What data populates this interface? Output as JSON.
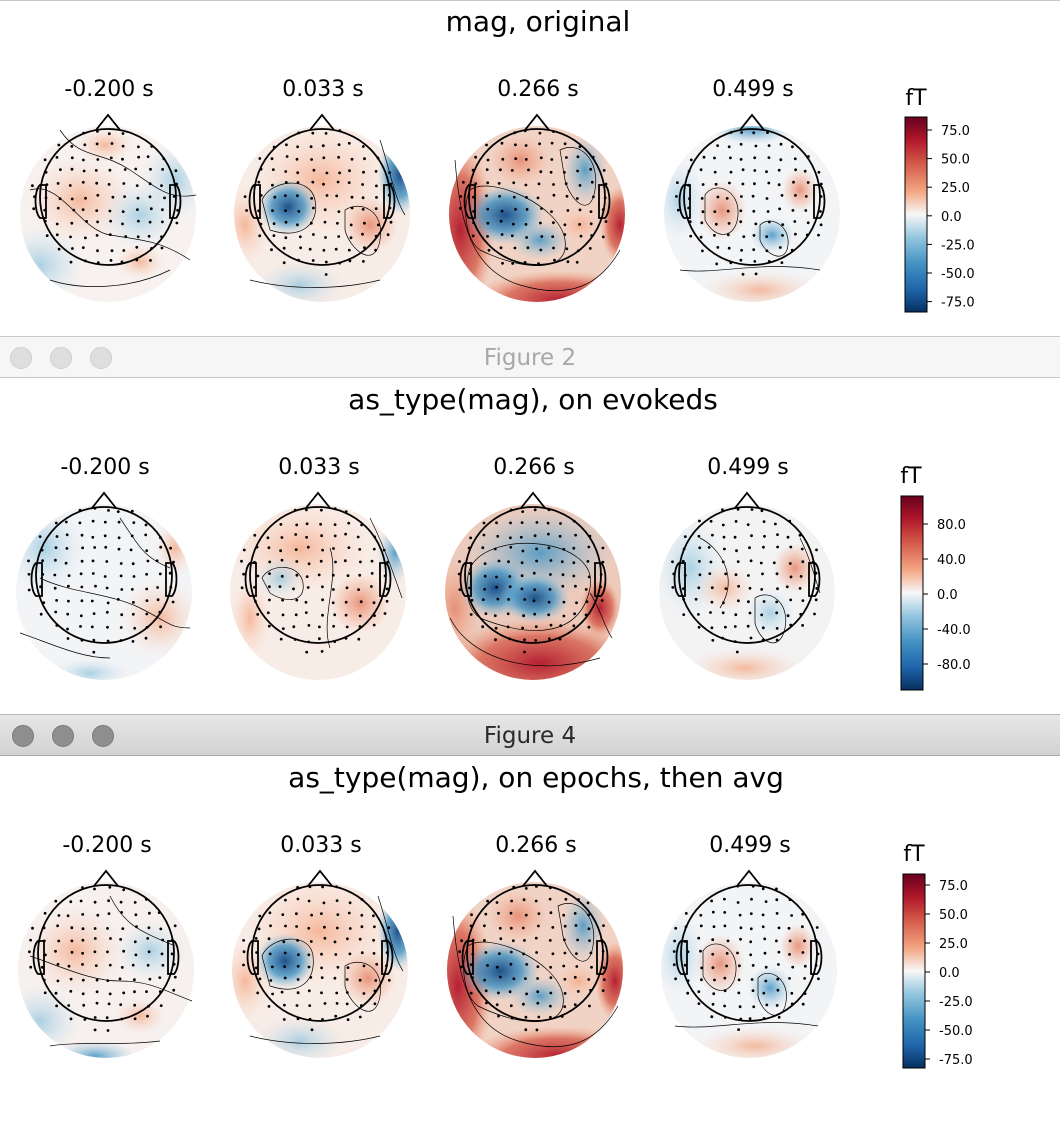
{
  "windows": [
    {
      "window_title": "",
      "title": "mag, original",
      "times": [
        "-0.200 s",
        "0.033 s",
        "0.266 s",
        "0.499 s"
      ],
      "colorbar": {
        "unit": "fT",
        "ticks": [
          "75.0",
          "50.0",
          "25.0",
          "0.0",
          "-25.0",
          "-50.0",
          "-75.0"
        ]
      }
    },
    {
      "window_title": "Figure 2",
      "title": "as_type(mag), on evokeds",
      "times": [
        "-0.200 s",
        "0.033 s",
        "0.266 s",
        "0.499 s"
      ],
      "colorbar": {
        "unit": "fT",
        "ticks": [
          "80.0",
          "40.0",
          "0.0",
          "-40.0",
          "-80.0"
        ]
      }
    },
    {
      "window_title": "Figure 4",
      "title": "as_type(mag), on epochs, then avg",
      "times": [
        "-0.200 s",
        "0.033 s",
        "0.266 s",
        "0.499 s"
      ],
      "colorbar": {
        "unit": "fT",
        "ticks": [
          "75.0",
          "50.0",
          "25.0",
          "0.0",
          "-25.0",
          "-50.0",
          "-75.0"
        ]
      }
    }
  ],
  "colormap": {
    "name": "RdBu_r",
    "high": "#67001f",
    "positive": "#d6604d",
    "zero": "#f7f7f7",
    "negative": "#4393c3",
    "low": "#053061"
  }
}
